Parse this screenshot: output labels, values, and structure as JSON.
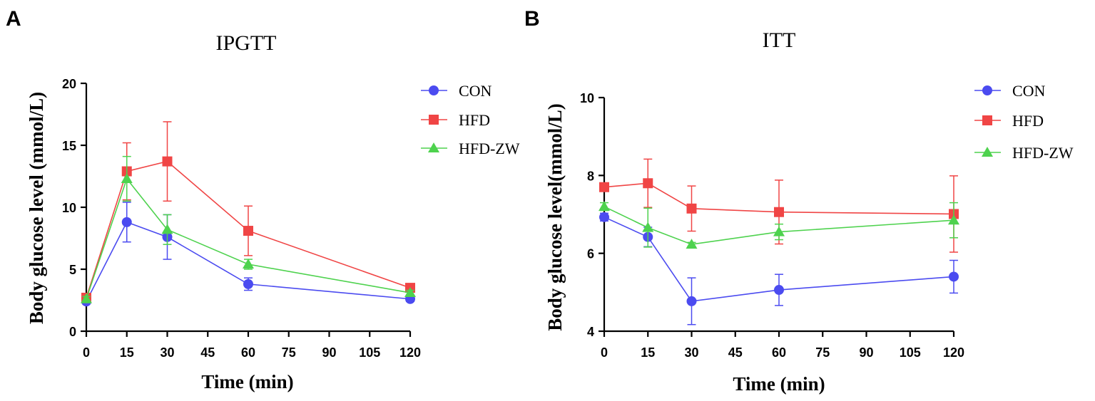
{
  "panel_letters": [
    "A",
    "B"
  ],
  "colors": {
    "CON": "#4b4bf0",
    "HFD": "#f04545",
    "HFD-ZW": "#4ed24e"
  },
  "chart_data": [
    {
      "type": "line",
      "title": "IPGTT",
      "xlabel": "Time (min)",
      "ylabel": "Body glucose level (mmol/L)",
      "x": [
        0,
        15,
        30,
        60,
        120
      ],
      "xlim": [
        0,
        120
      ],
      "ylim": [
        0,
        20
      ],
      "xticks": [
        0,
        15,
        30,
        45,
        60,
        75,
        90,
        105,
        120
      ],
      "yticks": [
        0,
        5,
        10,
        15,
        20
      ],
      "grid": false,
      "legend": "top-right",
      "series": [
        {
          "name": "CON",
          "marker": "circle",
          "values": [
            2.4,
            8.8,
            7.6,
            3.8,
            2.6
          ],
          "errors": [
            0.2,
            1.6,
            1.8,
            0.5,
            0.2
          ]
        },
        {
          "name": "HFD",
          "marker": "square",
          "values": [
            2.7,
            12.9,
            13.7,
            8.1,
            3.5
          ],
          "errors": [
            0.2,
            2.3,
            3.2,
            2.0,
            0.3
          ]
        },
        {
          "name": "HFD-ZW",
          "marker": "triangle",
          "values": [
            2.6,
            12.3,
            8.2,
            5.4,
            3.1
          ],
          "errors": [
            0.2,
            1.8,
            1.2,
            0.4,
            0.2
          ]
        }
      ]
    },
    {
      "type": "line",
      "title": "ITT",
      "xlabel": "Time (min)",
      "ylabel": "Body glucose level(mmol/L)",
      "x": [
        0,
        15,
        30,
        60,
        120
      ],
      "xlim": [
        0,
        120
      ],
      "ylim": [
        4,
        10
      ],
      "xticks": [
        0,
        15,
        30,
        45,
        60,
        75,
        90,
        105,
        120
      ],
      "yticks": [
        4,
        6,
        8,
        10
      ],
      "grid": false,
      "legend": "top-right",
      "series": [
        {
          "name": "CON",
          "marker": "circle",
          "values": [
            6.93,
            6.42,
            4.77,
            5.06,
            5.4
          ],
          "errors": [
            0.1,
            0.25,
            0.6,
            0.4,
            0.42
          ]
        },
        {
          "name": "HFD",
          "marker": "square",
          "values": [
            7.7,
            7.8,
            7.15,
            7.06,
            7.01
          ],
          "errors": [
            0.1,
            0.62,
            0.58,
            0.82,
            0.98
          ]
        },
        {
          "name": "HFD-ZW",
          "marker": "triangle",
          "values": [
            7.2,
            6.66,
            6.23,
            6.55,
            6.85
          ],
          "errors": [
            0.1,
            0.5,
            0.05,
            0.2,
            0.45
          ]
        }
      ]
    }
  ]
}
